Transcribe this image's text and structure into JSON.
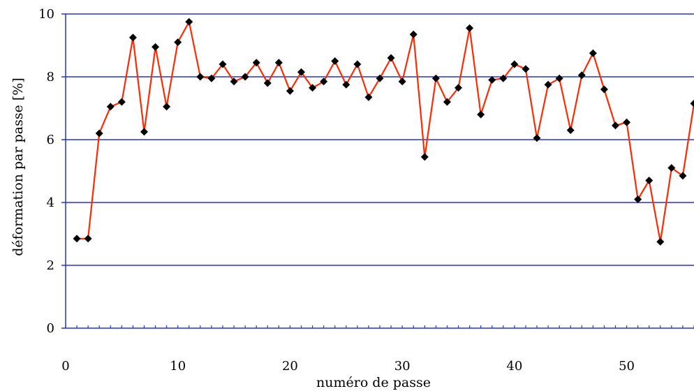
{
  "chart_data": {
    "type": "line",
    "title": "",
    "xlabel": "numéro de passe",
    "ylabel": "déformation par passe [%]",
    "xlim": [
      0,
      56
    ],
    "ylim": [
      0,
      10
    ],
    "x_ticks": [
      0,
      10,
      20,
      30,
      40,
      50
    ],
    "y_ticks": [
      0,
      2,
      4,
      6,
      8,
      10
    ],
    "x_minor_step": 1,
    "grid": "horizontal",
    "legend": "none",
    "series": [
      {
        "line_color": "#ff2a00",
        "marker": "diamond",
        "marker_color": "#000000",
        "x": [
          1,
          2,
          3,
          4,
          5,
          6,
          7,
          8,
          9,
          10,
          11,
          12,
          13,
          14,
          15,
          16,
          17,
          18,
          19,
          20,
          21,
          22,
          23,
          24,
          25,
          26,
          27,
          28,
          29,
          30,
          31,
          32,
          33,
          34,
          35,
          36,
          37,
          38,
          39,
          40,
          41,
          42,
          43,
          44,
          45,
          46,
          47,
          48,
          49,
          50,
          51,
          52,
          53,
          54,
          55,
          56
        ],
        "values": [
          2.85,
          2.85,
          6.2,
          7.05,
          7.2,
          9.25,
          6.25,
          8.95,
          7.05,
          9.1,
          9.75,
          8.0,
          7.95,
          8.4,
          7.85,
          8.0,
          8.45,
          7.8,
          8.45,
          7.55,
          8.15,
          7.65,
          7.85,
          8.5,
          7.75,
          8.4,
          7.35,
          7.95,
          8.6,
          7.85,
          9.35,
          5.45,
          7.95,
          7.2,
          7.65,
          9.55,
          6.8,
          7.9,
          7.95,
          8.4,
          8.25,
          6.05,
          7.75,
          7.95,
          6.3,
          8.05,
          8.75,
          7.6,
          6.45,
          6.55,
          4.1,
          4.7,
          2.75,
          5.1,
          4.85,
          7.15
        ]
      }
    ]
  },
  "colors": {
    "grid": "#2234d6",
    "axis": "#2234d6",
    "line": "#ff2a00",
    "marker": "#000000"
  }
}
